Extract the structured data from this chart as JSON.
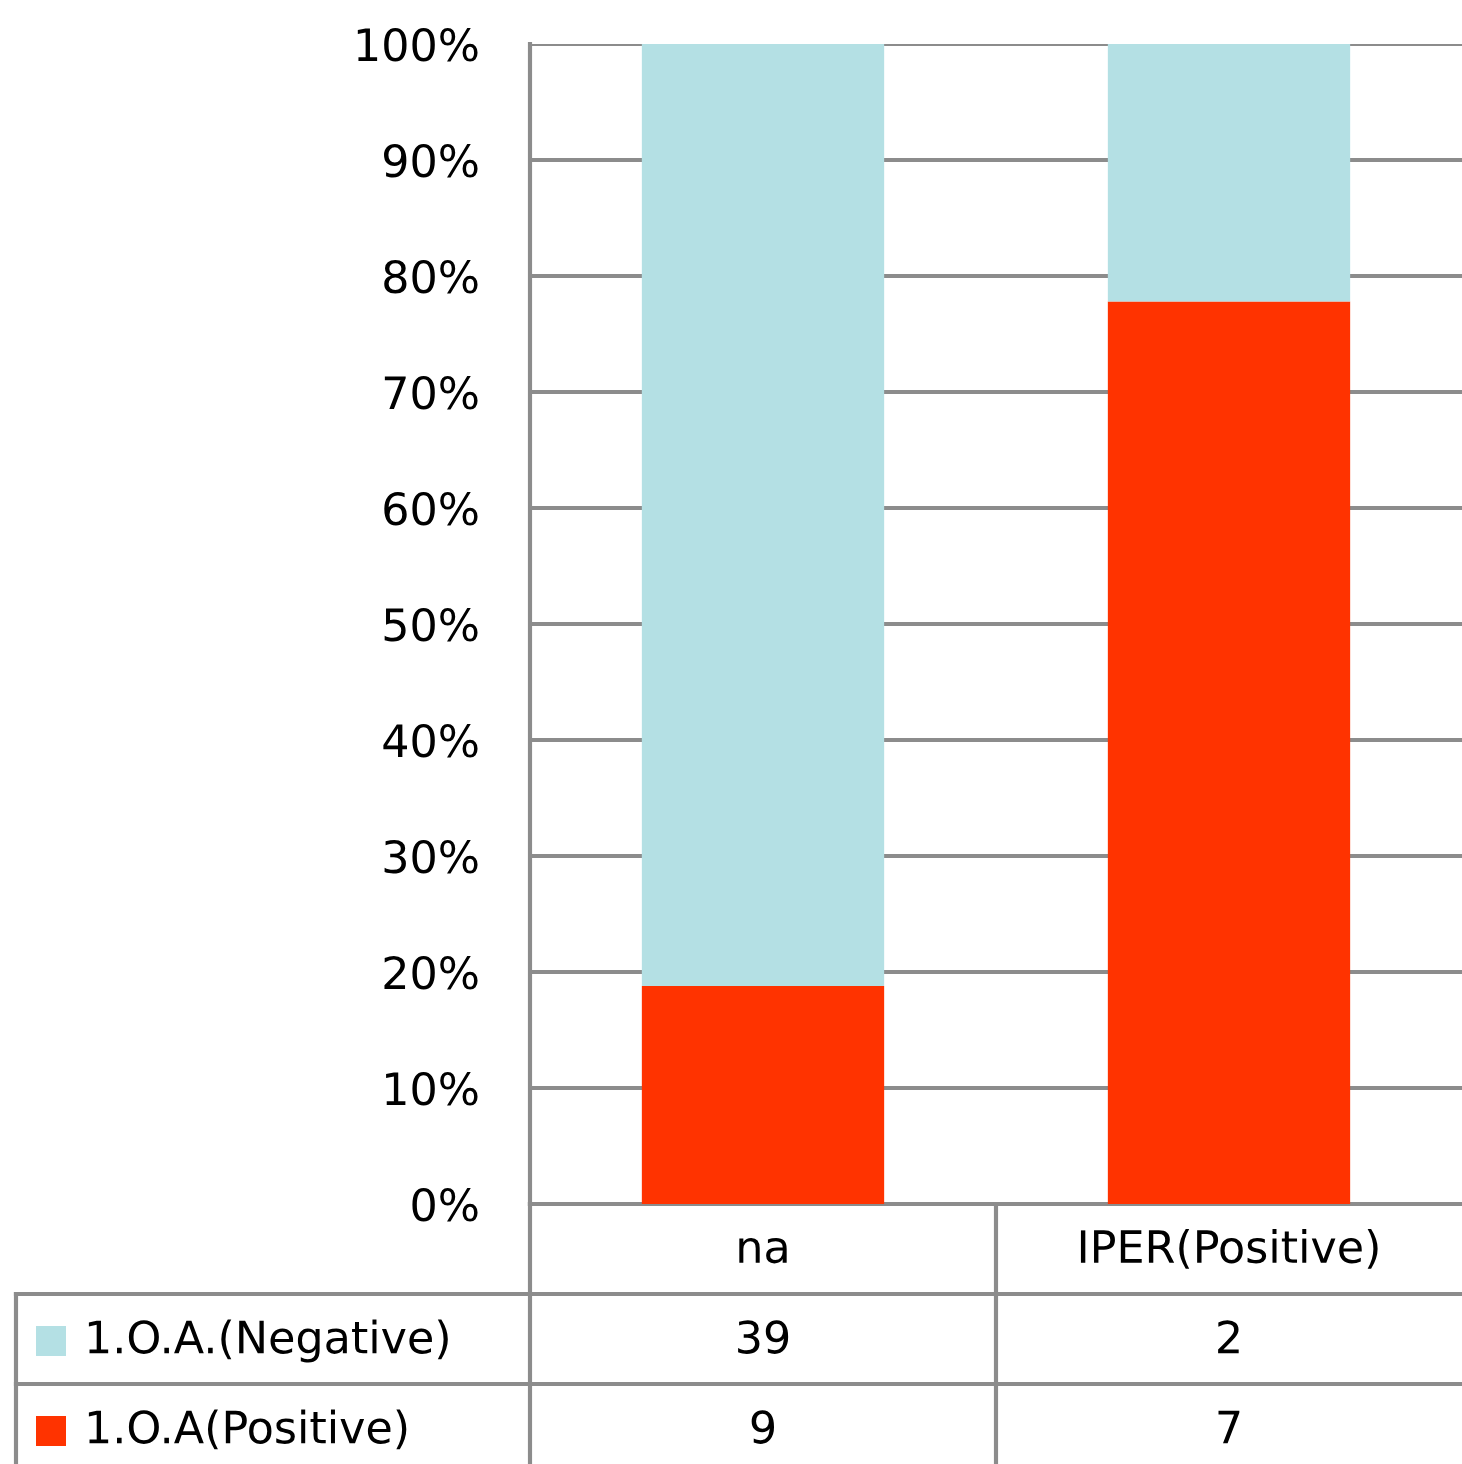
{
  "chart_data": {
    "type": "bar",
    "stacked": true,
    "categories": [
      "na",
      "IPER(Positive)"
    ],
    "series": [
      {
        "name": "1.O.A(Positive)",
        "color": "#ff3300",
        "values": [
          18.8,
          77.8
        ]
      },
      {
        "name": "1.O.A.(Negative)",
        "color": "#b4e0e4",
        "values": [
          81.2,
          22.2
        ]
      }
    ],
    "ylim": [
      0,
      100
    ],
    "yticks": [
      {
        "value": 0,
        "label": "0%"
      },
      {
        "value": 10,
        "label": "10%"
      },
      {
        "value": 20,
        "label": "20%"
      },
      {
        "value": 30,
        "label": "30%"
      },
      {
        "value": 40,
        "label": "40%"
      },
      {
        "value": 50,
        "label": "50%"
      },
      {
        "value": 60,
        "label": "60%"
      },
      {
        "value": 70,
        "label": "70%"
      },
      {
        "value": 80,
        "label": "80%"
      },
      {
        "value": 90,
        "label": "90%"
      },
      {
        "value": 100,
        "label": "100%"
      }
    ],
    "grid": "y",
    "legend": "bottom",
    "annotations": [
      "39",
      "2",
      "9",
      "7"
    ]
  }
}
